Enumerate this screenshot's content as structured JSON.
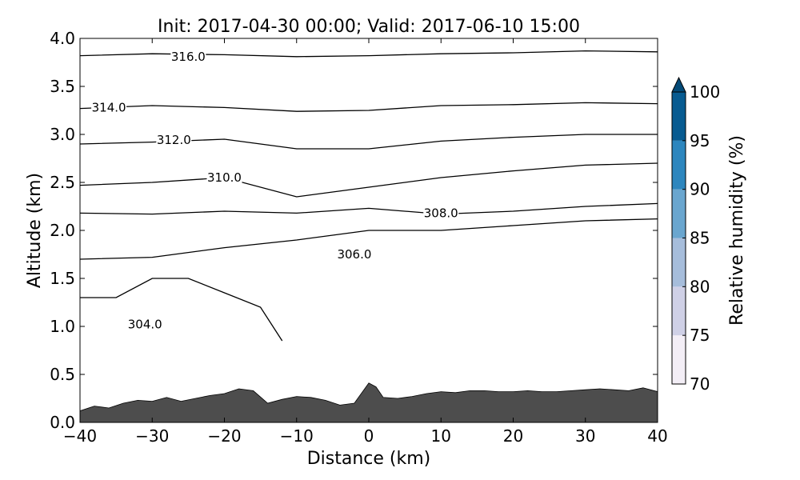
{
  "chart_data": {
    "type": "contour",
    "title": "Init: 2017-04-30 00:00; Valid: 2017-06-10 15:00",
    "xlabel": "Distance (km)",
    "ylabel": "Altitude (km)",
    "xlim": [
      -40,
      40
    ],
    "ylim": [
      0.0,
      4.0
    ],
    "x_ticks": [
      -40,
      -30,
      -20,
      -10,
      0,
      10,
      20,
      30,
      40
    ],
    "x_tick_labels": [
      "−40",
      "−30",
      "−20",
      "−10",
      "0",
      "10",
      "20",
      "30",
      "40"
    ],
    "y_ticks": [
      0.0,
      0.5,
      1.0,
      1.5,
      2.0,
      2.5,
      3.0,
      3.5,
      4.0
    ],
    "y_tick_labels": [
      "0.0",
      "0.5",
      "1.0",
      "1.5",
      "2.0",
      "2.5",
      "3.0",
      "3.5",
      "4.0"
    ],
    "grid": false,
    "terrain": {
      "color": "#4d4d4d",
      "x": [
        -40,
        -38,
        -36,
        -34,
        -32,
        -30,
        -28,
        -26,
        -24,
        -22,
        -20,
        -18,
        -16,
        -14,
        -12,
        -10,
        -8,
        -6,
        -4,
        -2,
        0,
        1,
        2,
        4,
        6,
        8,
        10,
        12,
        14,
        16,
        18,
        20,
        22,
        24,
        26,
        28,
        30,
        32,
        34,
        36,
        38,
        40
      ],
      "y": [
        0.12,
        0.17,
        0.15,
        0.2,
        0.23,
        0.22,
        0.26,
        0.22,
        0.25,
        0.28,
        0.3,
        0.35,
        0.33,
        0.2,
        0.24,
        0.27,
        0.26,
        0.23,
        0.18,
        0.2,
        0.41,
        0.37,
        0.26,
        0.25,
        0.27,
        0.3,
        0.32,
        0.31,
        0.33,
        0.33,
        0.32,
        0.32,
        0.33,
        0.32,
        0.32,
        0.33,
        0.34,
        0.35,
        0.34,
        0.33,
        0.36,
        0.32
      ]
    },
    "contour_levels": [
      {
        "label": "316.0",
        "label_pos": [
          -25,
          3.81
        ],
        "x": [
          -40,
          -30,
          -20,
          -10,
          0,
          10,
          20,
          30,
          40
        ],
        "y": [
          3.82,
          3.84,
          3.83,
          3.81,
          3.82,
          3.84,
          3.85,
          3.87,
          3.86
        ]
      },
      {
        "label": "314.0",
        "label_pos": [
          -36,
          3.28
        ],
        "x": [
          -40,
          -30,
          -20,
          -10,
          0,
          10,
          20,
          30,
          40
        ],
        "y": [
          3.27,
          3.3,
          3.28,
          3.24,
          3.25,
          3.3,
          3.31,
          3.33,
          3.32
        ]
      },
      {
        "label": "312.0",
        "label_pos": [
          -27,
          2.94
        ],
        "x": [
          -40,
          -30,
          -20,
          -10,
          0,
          10,
          20,
          30,
          40
        ],
        "y": [
          2.9,
          2.92,
          2.95,
          2.85,
          2.85,
          2.93,
          2.97,
          3.0,
          3.0
        ]
      },
      {
        "label": "310.0",
        "label_pos": [
          -20,
          2.55
        ],
        "x": [
          -40,
          -30,
          -20,
          -10,
          0,
          10,
          20,
          30,
          40
        ],
        "y": [
          2.47,
          2.5,
          2.55,
          2.35,
          2.45,
          2.55,
          2.62,
          2.68,
          2.7
        ]
      },
      {
        "label": "308.0",
        "label_pos": [
          10,
          2.18
        ],
        "x": [
          -40,
          -30,
          -20,
          -10,
          0,
          10,
          20,
          30,
          40
        ],
        "y": [
          2.18,
          2.17,
          2.2,
          2.18,
          2.23,
          2.17,
          2.2,
          2.25,
          2.28
        ]
      },
      {
        "label": "306.0",
        "label_pos": [
          -2,
          1.75
        ],
        "x": [
          -40,
          -30,
          -20,
          -10,
          0,
          10,
          20,
          30,
          40
        ],
        "y": [
          1.7,
          1.72,
          1.82,
          1.9,
          2.0,
          2.0,
          2.05,
          2.1,
          2.12
        ]
      },
      {
        "label": "304.0",
        "label_pos": [
          -31,
          1.02
        ],
        "x": [
          -40,
          -35,
          -30,
          -25,
          -20,
          -15,
          -12
        ],
        "y": [
          1.3,
          1.3,
          1.5,
          1.5,
          1.35,
          1.2,
          0.85
        ]
      }
    ],
    "colorbar": {
      "label": "Relative humidity (%)",
      "ticks": [
        "70",
        "75",
        "80",
        "85",
        "90",
        "95",
        "100"
      ],
      "colors": [
        "#f3eef6",
        "#cfd0e6",
        "#a6bddb",
        "#6aa6cf",
        "#2d86be",
        "#075b91",
        "#034a77"
      ]
    }
  }
}
